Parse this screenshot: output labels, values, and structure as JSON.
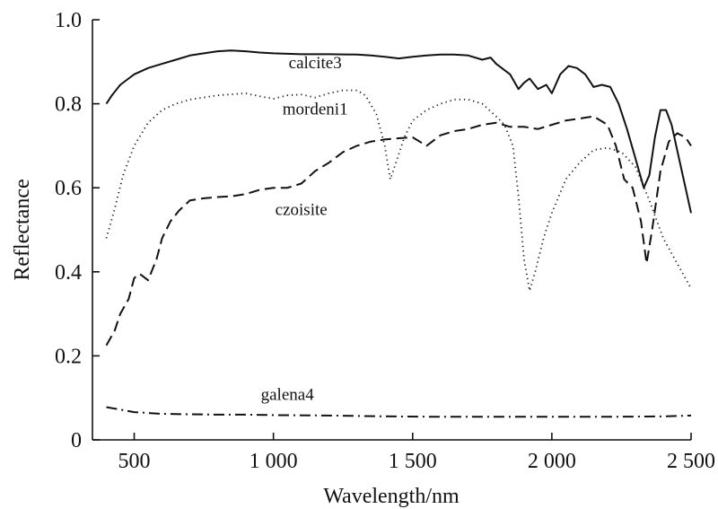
{
  "chart_data": {
    "type": "line",
    "title": "",
    "xlabel": "Wavelength/nm",
    "ylabel": "Reflectance",
    "xlim": [
      350,
      2500
    ],
    "ylim": [
      0,
      1.0
    ],
    "x_ticks": [
      500,
      1000,
      1500,
      2000,
      2500
    ],
    "x_tick_labels": [
      "500",
      "1 000",
      "1 500",
      "2 000",
      "2 500"
    ],
    "y_ticks": [
      0,
      0.2,
      0.4,
      0.6,
      0.8,
      1.0
    ],
    "y_tick_labels": [
      "0",
      "0.2",
      "0.4",
      "0.6",
      "0.8",
      "1.0"
    ],
    "grid": false,
    "legend": "none",
    "series": [
      {
        "name": "calcite3",
        "style": "solid",
        "label_anchor": [
          1150,
          0.885
        ],
        "points": [
          [
            400,
            0.8
          ],
          [
            420,
            0.82
          ],
          [
            450,
            0.845
          ],
          [
            480,
            0.86
          ],
          [
            500,
            0.87
          ],
          [
            550,
            0.885
          ],
          [
            600,
            0.895
          ],
          [
            650,
            0.905
          ],
          [
            700,
            0.915
          ],
          [
            750,
            0.92
          ],
          [
            800,
            0.925
          ],
          [
            850,
            0.927
          ],
          [
            900,
            0.925
          ],
          [
            950,
            0.922
          ],
          [
            1000,
            0.92
          ],
          [
            1100,
            0.918
          ],
          [
            1200,
            0.918
          ],
          [
            1300,
            0.917
          ],
          [
            1350,
            0.915
          ],
          [
            1400,
            0.912
          ],
          [
            1450,
            0.908
          ],
          [
            1500,
            0.912
          ],
          [
            1550,
            0.915
          ],
          [
            1600,
            0.917
          ],
          [
            1650,
            0.917
          ],
          [
            1700,
            0.915
          ],
          [
            1750,
            0.905
          ],
          [
            1780,
            0.91
          ],
          [
            1800,
            0.895
          ],
          [
            1850,
            0.87
          ],
          [
            1880,
            0.835
          ],
          [
            1900,
            0.85
          ],
          [
            1920,
            0.86
          ],
          [
            1950,
            0.835
          ],
          [
            1980,
            0.845
          ],
          [
            2000,
            0.825
          ],
          [
            2030,
            0.87
          ],
          [
            2060,
            0.89
          ],
          [
            2090,
            0.885
          ],
          [
            2120,
            0.87
          ],
          [
            2150,
            0.84
          ],
          [
            2180,
            0.845
          ],
          [
            2210,
            0.84
          ],
          [
            2240,
            0.8
          ],
          [
            2270,
            0.74
          ],
          [
            2300,
            0.67
          ],
          [
            2330,
            0.6
          ],
          [
            2350,
            0.63
          ],
          [
            2370,
            0.72
          ],
          [
            2390,
            0.785
          ],
          [
            2410,
            0.785
          ],
          [
            2430,
            0.75
          ],
          [
            2460,
            0.66
          ],
          [
            2500,
            0.54
          ]
        ]
      },
      {
        "name": "mordeni1",
        "style": "dotted",
        "label_anchor": [
          1150,
          0.775
        ],
        "points": [
          [
            400,
            0.48
          ],
          [
            430,
            0.55
          ],
          [
            460,
            0.63
          ],
          [
            500,
            0.7
          ],
          [
            550,
            0.755
          ],
          [
            600,
            0.785
          ],
          [
            650,
            0.8
          ],
          [
            700,
            0.81
          ],
          [
            800,
            0.82
          ],
          [
            900,
            0.825
          ],
          [
            950,
            0.818
          ],
          [
            1000,
            0.812
          ],
          [
            1050,
            0.82
          ],
          [
            1100,
            0.822
          ],
          [
            1150,
            0.815
          ],
          [
            1200,
            0.825
          ],
          [
            1250,
            0.832
          ],
          [
            1300,
            0.832
          ],
          [
            1330,
            0.82
          ],
          [
            1370,
            0.775
          ],
          [
            1400,
            0.7
          ],
          [
            1420,
            0.62
          ],
          [
            1440,
            0.66
          ],
          [
            1470,
            0.72
          ],
          [
            1500,
            0.76
          ],
          [
            1550,
            0.785
          ],
          [
            1600,
            0.8
          ],
          [
            1650,
            0.81
          ],
          [
            1700,
            0.81
          ],
          [
            1750,
            0.8
          ],
          [
            1800,
            0.77
          ],
          [
            1830,
            0.75
          ],
          [
            1860,
            0.7
          ],
          [
            1880,
            0.58
          ],
          [
            1900,
            0.43
          ],
          [
            1920,
            0.355
          ],
          [
            1940,
            0.4
          ],
          [
            1970,
            0.48
          ],
          [
            2000,
            0.54
          ],
          [
            2050,
            0.62
          ],
          [
            2100,
            0.66
          ],
          [
            2150,
            0.69
          ],
          [
            2200,
            0.695
          ],
          [
            2250,
            0.685
          ],
          [
            2300,
            0.65
          ],
          [
            2350,
            0.57
          ],
          [
            2400,
            0.48
          ],
          [
            2450,
            0.42
          ],
          [
            2500,
            0.36
          ]
        ]
      },
      {
        "name": "czoisite",
        "style": "dashed",
        "label_anchor": [
          1100,
          0.535
        ],
        "points": [
          [
            400,
            0.225
          ],
          [
            430,
            0.26
          ],
          [
            450,
            0.3
          ],
          [
            480,
            0.335
          ],
          [
            500,
            0.385
          ],
          [
            520,
            0.395
          ],
          [
            550,
            0.38
          ],
          [
            580,
            0.43
          ],
          [
            600,
            0.48
          ],
          [
            630,
            0.52
          ],
          [
            660,
            0.545
          ],
          [
            700,
            0.57
          ],
          [
            750,
            0.575
          ],
          [
            800,
            0.578
          ],
          [
            850,
            0.58
          ],
          [
            900,
            0.585
          ],
          [
            950,
            0.595
          ],
          [
            1000,
            0.6
          ],
          [
            1050,
            0.6
          ],
          [
            1100,
            0.61
          ],
          [
            1150,
            0.64
          ],
          [
            1200,
            0.66
          ],
          [
            1250,
            0.685
          ],
          [
            1300,
            0.7
          ],
          [
            1350,
            0.71
          ],
          [
            1400,
            0.715
          ],
          [
            1450,
            0.718
          ],
          [
            1500,
            0.72
          ],
          [
            1550,
            0.7
          ],
          [
            1600,
            0.725
          ],
          [
            1650,
            0.735
          ],
          [
            1700,
            0.74
          ],
          [
            1750,
            0.75
          ],
          [
            1800,
            0.755
          ],
          [
            1850,
            0.745
          ],
          [
            1900,
            0.745
          ],
          [
            1950,
            0.74
          ],
          [
            2000,
            0.75
          ],
          [
            2050,
            0.76
          ],
          [
            2100,
            0.765
          ],
          [
            2150,
            0.77
          ],
          [
            2200,
            0.75
          ],
          [
            2230,
            0.7
          ],
          [
            2260,
            0.62
          ],
          [
            2290,
            0.6
          ],
          [
            2320,
            0.52
          ],
          [
            2340,
            0.42
          ],
          [
            2360,
            0.5
          ],
          [
            2390,
            0.64
          ],
          [
            2420,
            0.71
          ],
          [
            2450,
            0.73
          ],
          [
            2480,
            0.72
          ],
          [
            2500,
            0.7
          ]
        ]
      },
      {
        "name": "galena4",
        "style": "dashdot",
        "label_anchor": [
          1050,
          0.095
        ],
        "points": [
          [
            400,
            0.078
          ],
          [
            450,
            0.072
          ],
          [
            500,
            0.066
          ],
          [
            600,
            0.062
          ],
          [
            700,
            0.061
          ],
          [
            800,
            0.06
          ],
          [
            900,
            0.06
          ],
          [
            1000,
            0.059
          ],
          [
            1200,
            0.058
          ],
          [
            1400,
            0.056
          ],
          [
            1600,
            0.055
          ],
          [
            1800,
            0.055
          ],
          [
            2000,
            0.055
          ],
          [
            2200,
            0.055
          ],
          [
            2400,
            0.056
          ],
          [
            2500,
            0.058
          ]
        ]
      }
    ]
  }
}
